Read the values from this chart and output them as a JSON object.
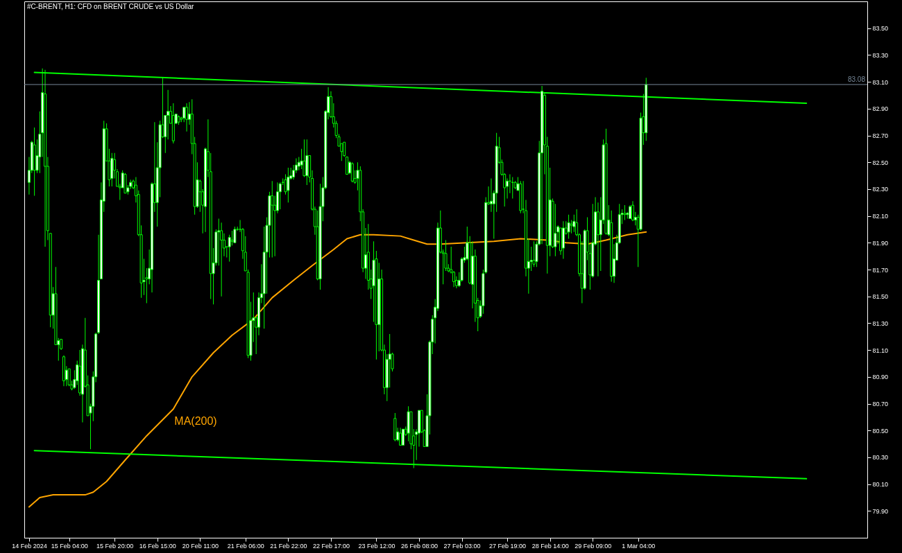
{
  "chart_data": {
    "type": "candlestick",
    "title": "#C-BRENT, H1:  CFD on BRENT CRUDE vs US Dollar",
    "color": "#00ff00",
    "categories": [
      "14 Feb 2024",
      null,
      null,
      null,
      null,
      null,
      null,
      null,
      null,
      null,
      null,
      null,
      null,
      null,
      null,
      "15 Feb 04:00",
      null,
      null,
      null,
      null,
      null,
      null,
      null,
      null,
      null,
      null,
      null,
      null,
      null,
      null,
      null,
      null,
      "15 Feb 20:00",
      null,
      null,
      null,
      null,
      null,
      null,
      null,
      null,
      null,
      null,
      null,
      null,
      null,
      null,
      null,
      "16 Feb 15:00",
      null,
      null,
      null,
      null,
      null,
      null,
      null,
      null,
      null,
      null,
      null,
      null,
      null,
      null,
      null,
      "20 Feb 11:00",
      null,
      null,
      null,
      null,
      null,
      null,
      null,
      null,
      null,
      null,
      null,
      null,
      null,
      null,
      null,
      null,
      "21 Feb 06:00",
      null,
      null,
      null,
      null,
      null,
      null,
      null,
      null,
      null,
      null,
      null,
      null,
      null,
      null,
      null,
      "21 Feb 22:00",
      null,
      null,
      null,
      null,
      null,
      null,
      null,
      null,
      null,
      null,
      null,
      null,
      null,
      null,
      null,
      "22 Feb 17:00",
      null,
      null,
      null,
      null,
      null,
      null,
      null,
      null,
      null,
      null,
      null,
      null,
      null,
      null,
      null,
      null,
      "23 Feb 12:00",
      null,
      null,
      null,
      null,
      null,
      null,
      null,
      null,
      null,
      null,
      null,
      null,
      null,
      null,
      null,
      "26 Feb 08:00",
      null,
      null,
      null,
      null,
      null,
      null,
      null,
      null,
      null,
      null,
      null,
      null,
      null,
      null,
      null,
      "27 Feb 03:00",
      null,
      null,
      null,
      null,
      null,
      null,
      null,
      null,
      null,
      null,
      null,
      null,
      null,
      null,
      null,
      null,
      "27 Feb 19:00",
      null,
      null,
      null,
      null,
      null,
      null,
      null,
      null,
      null,
      null,
      null,
      null,
      null,
      null,
      null,
      "28 Feb 14:00",
      null,
      null,
      null,
      null,
      null,
      null,
      null,
      null,
      null,
      null,
      null,
      null,
      null,
      null,
      null,
      "29 Feb 09:00",
      null,
      null,
      null,
      null,
      null,
      null,
      null,
      null,
      null,
      null,
      null,
      null,
      null,
      null,
      null,
      null,
      "1 Mar 04:00",
      null,
      null,
      null,
      null,
      null,
      null,
      null,
      null,
      null,
      null,
      null,
      null,
      null,
      null,
      null,
      null,
      null,
      null,
      null,
      null,
      null,
      null,
      null,
      null,
      null,
      null,
      null,
      null,
      null,
      null,
      null,
      null,
      null,
      null,
      null,
      null,
      null,
      null,
      null,
      null,
      null,
      null,
      null,
      null,
      null,
      null,
      null,
      null,
      null,
      null,
      null,
      null,
      null,
      null,
      null,
      null,
      null,
      null,
      null,
      null,
      null,
      null,
      null,
      null,
      null,
      null,
      null,
      null,
      null,
      null,
      null,
      null,
      null,
      null,
      null,
      null,
      null,
      null,
      null,
      null,
      null,
      null,
      null,
      null
    ],
    "ohlc": [
      [
        82.35,
        82.54,
        82.26,
        82.44
      ],
      [
        82.44,
        82.66,
        82.42,
        82.65
      ],
      [
        82.63,
        82.76,
        82.25,
        82.44
      ],
      [
        82.44,
        82.67,
        82.42,
        82.55
      ],
      [
        82.54,
        82.88,
        82.42,
        82.71
      ],
      [
        82.72,
        83.2,
        82.54,
        83.02
      ],
      [
        83.01,
        83.19,
        81.87,
        82.47
      ],
      [
        82.47,
        82.54,
        81.92,
        81.99
      ],
      [
        81.97,
        81.97,
        81.27,
        81.36
      ],
      [
        81.36,
        81.57,
        81.26,
        81.52
      ],
      [
        81.52,
        81.72,
        81.14,
        81.14
      ],
      [
        81.14,
        81.19,
        81.02,
        81.17
      ],
      [
        81.18,
        81.18,
        81.1,
        81.11
      ],
      [
        81.05,
        81.06,
        80.83,
        80.87
      ],
      [
        80.88,
        80.98,
        80.83,
        80.95
      ],
      [
        80.96,
        80.96,
        80.83,
        80.84
      ],
      [
        80.84,
        80.87,
        80.8,
        80.81
      ],
      [
        80.82,
        80.95,
        80.81,
        80.88
      ],
      [
        80.87,
        81.02,
        80.84,
        80.99
      ],
      [
        80.98,
        81.1,
        80.76,
        80.78
      ],
      [
        80.77,
        81.14,
        80.56,
        81.11
      ],
      [
        81.1,
        81.34,
        80.82,
        80.83
      ],
      [
        80.84,
        80.91,
        80.61,
        80.61
      ],
      [
        80.63,
        80.7,
        80.36,
        80.68
      ],
      [
        80.68,
        80.94,
        80.57,
        80.9
      ],
      [
        80.9,
        81.23,
        80.86,
        81.22
      ],
      [
        81.23,
        81.96,
        81.22,
        81.62
      ],
      [
        81.63,
        82.35,
        81.63,
        82.22
      ],
      [
        82.21,
        82.81,
        82.13,
        82.75
      ],
      [
        82.75,
        82.79,
        82.51,
        82.51
      ],
      [
        82.51,
        82.6,
        82.32,
        82.37
      ],
      [
        82.38,
        82.57,
        82.32,
        82.53
      ],
      [
        82.52,
        82.57,
        82.38,
        82.44
      ],
      [
        82.43,
        82.45,
        82.32,
        82.32
      ],
      [
        82.32,
        82.34,
        82.22,
        82.31
      ],
      [
        82.31,
        82.44,
        82.31,
        82.42
      ],
      [
        82.41,
        82.42,
        82.27,
        82.27
      ],
      [
        82.28,
        82.33,
        82.26,
        82.31
      ],
      [
        82.32,
        82.37,
        82.3,
        82.35
      ],
      [
        82.36,
        82.37,
        82.3,
        82.31
      ],
      [
        82.33,
        82.39,
        82.2,
        82.25
      ],
      [
        82.26,
        82.29,
        81.95,
        81.96
      ],
      [
        81.96,
        82.03,
        81.49,
        81.6
      ],
      [
        81.61,
        81.78,
        81.51,
        81.62
      ],
      [
        81.64,
        81.71,
        81.45,
        81.63
      ],
      [
        81.63,
        81.85,
        81.59,
        81.71
      ],
      [
        81.7,
        82.35,
        81.53,
        82.34
      ],
      [
        82.34,
        82.8,
        82.13,
        82.2
      ],
      [
        82.2,
        82.65,
        82.02,
        82.46
      ],
      [
        82.46,
        82.81,
        82.24,
        82.78
      ],
      [
        82.78,
        83.13,
        82.68,
        82.69
      ],
      [
        82.69,
        82.85,
        82.57,
        82.85
      ],
      [
        82.85,
        83.04,
        82.67,
        82.88
      ],
      [
        82.88,
        82.92,
        82.79,
        82.79
      ],
      [
        82.85,
        82.94,
        82.64,
        82.66
      ],
      [
        82.79,
        82.86,
        82.79,
        82.86
      ],
      [
        82.84,
        82.85,
        82.78,
        82.8
      ],
      [
        82.83,
        82.84,
        82.8,
        82.82
      ],
      [
        82.83,
        82.91,
        82.8,
        82.91
      ],
      [
        82.91,
        82.94,
        82.73,
        82.82
      ],
      [
        82.82,
        82.95,
        82.78,
        82.86
      ],
      [
        82.86,
        82.97,
        82.56,
        82.64
      ],
      [
        82.64,
        82.69,
        82.11,
        82.17
      ],
      [
        82.17,
        82.5,
        82.16,
        82.37
      ],
      [
        82.36,
        82.37,
        82.13,
        82.28
      ],
      [
        82.28,
        82.3,
        81.97,
        82.18
      ],
      [
        82.17,
        82.61,
        81.98,
        82.6
      ],
      [
        82.58,
        82.82,
        82.39,
        82.44
      ],
      [
        82.43,
        82.57,
        81.48,
        81.67
      ],
      [
        81.67,
        81.86,
        81.44,
        81.75
      ],
      [
        81.75,
        82.0,
        81.73,
        81.98
      ],
      [
        81.98,
        82.08,
        81.73,
        81.99
      ],
      [
        81.99,
        82.05,
        81.5,
        81.92
      ],
      [
        81.92,
        81.97,
        81.8,
        81.86
      ],
      [
        81.87,
        81.87,
        81.79,
        81.87
      ],
      [
        81.87,
        81.96,
        81.76,
        81.94
      ],
      [
        81.92,
        81.99,
        81.88,
        81.91
      ],
      [
        81.9,
        82.02,
        81.9,
        82.0
      ],
      [
        82.0,
        82.02,
        81.99,
        82.0
      ],
      [
        82.0,
        82.07,
        81.98,
        82.0
      ],
      [
        82.0,
        82.01,
        81.78,
        81.84
      ],
      [
        81.83,
        81.95,
        81.69,
        81.69
      ],
      [
        81.68,
        81.7,
        81.04,
        81.06
      ],
      [
        81.06,
        81.46,
        81.02,
        81.32
      ],
      [
        81.32,
        81.53,
        81.16,
        81.34
      ],
      [
        81.34,
        81.35,
        81.07,
        81.27
      ],
      [
        81.27,
        81.53,
        81.21,
        81.49
      ],
      [
        81.49,
        81.74,
        81.45,
        81.52
      ],
      [
        81.52,
        82.02,
        81.26,
        81.83
      ],
      [
        81.83,
        82.09,
        81.52,
        82.03
      ],
      [
        82.03,
        82.28,
        81.79,
        82.25
      ],
      [
        82.25,
        82.36,
        81.79,
        82.18
      ],
      [
        82.18,
        82.25,
        81.8,
        82.14
      ],
      [
        82.14,
        82.35,
        82.12,
        82.28
      ],
      [
        82.28,
        82.35,
        82.15,
        82.34
      ],
      [
        82.35,
        82.38,
        82.33,
        82.35
      ],
      [
        82.37,
        82.41,
        82.26,
        82.28
      ],
      [
        82.29,
        82.46,
        82.2,
        82.39
      ],
      [
        82.38,
        82.46,
        82.37,
        82.4
      ],
      [
        82.39,
        82.48,
        82.37,
        82.44
      ],
      [
        82.44,
        82.53,
        82.42,
        82.48
      ],
      [
        82.47,
        82.54,
        82.44,
        82.5
      ],
      [
        82.48,
        82.6,
        82.45,
        82.51
      ],
      [
        82.51,
        82.67,
        82.39,
        82.4
      ],
      [
        82.4,
        82.67,
        82.33,
        82.55
      ],
      [
        82.55,
        82.55,
        82.35,
        82.39
      ],
      [
        82.38,
        82.44,
        82.14,
        82.15
      ],
      [
        82.15,
        82.17,
        81.96,
        82.02
      ],
      [
        82.02,
        82.14,
        81.62,
        81.63
      ],
      [
        81.63,
        82.34,
        81.55,
        82.17
      ],
      [
        82.17,
        82.39,
        82.06,
        82.31
      ],
      [
        82.31,
        82.89,
        82.3,
        82.88
      ],
      [
        82.87,
        83.06,
        82.82,
        82.99
      ],
      [
        82.99,
        83.03,
        82.83,
        82.84
      ],
      [
        82.84,
        82.94,
        82.76,
        82.79
      ],
      [
        82.79,
        82.81,
        82.68,
        82.7
      ],
      [
        82.69,
        82.71,
        82.62,
        82.62
      ],
      [
        82.64,
        82.64,
        82.51,
        82.58
      ],
      [
        82.65,
        82.65,
        82.54,
        82.55
      ],
      [
        82.54,
        82.54,
        82.41,
        82.41
      ],
      [
        82.42,
        82.51,
        82.41,
        82.5
      ],
      [
        82.49,
        82.5,
        82.35,
        82.36
      ],
      [
        82.38,
        82.44,
        82.34,
        82.35
      ],
      [
        82.38,
        82.5,
        82.29,
        82.44
      ],
      [
        82.44,
        82.47,
        82.06,
        82.13
      ],
      [
        82.13,
        82.15,
        81.68,
        81.71
      ],
      [
        81.71,
        82.01,
        81.63,
        81.81
      ],
      [
        81.83,
        82.04,
        81.55,
        81.62
      ],
      [
        81.63,
        81.7,
        81.48,
        81.56
      ],
      [
        81.58,
        81.91,
        81.31,
        81.77
      ],
      [
        81.78,
        81.84,
        81.03,
        81.29
      ],
      [
        81.29,
        81.75,
        81.09,
        81.63
      ],
      [
        81.63,
        81.7,
        81.09,
        81.1
      ],
      [
        81.1,
        81.14,
        80.77,
        80.82
      ],
      [
        80.82,
        81.07,
        80.72,
        81.03
      ],
      [
        81.03,
        81.22,
        80.82,
        81.07
      ],
      [
        81.07,
        81.08,
        80.94,
        80.96
      ],
      [
        80.59,
        80.63,
        80.42,
        80.43
      ],
      [
        80.43,
        80.52,
        80.42,
        80.49
      ],
      [
        80.48,
        80.52,
        80.39,
        80.39
      ],
      [
        80.39,
        80.51,
        80.39,
        80.51
      ],
      [
        80.51,
        80.53,
        80.46,
        80.47
      ],
      [
        80.48,
        80.68,
        80.42,
        80.64
      ],
      [
        80.64,
        80.64,
        80.36,
        80.4
      ],
      [
        80.46,
        80.51,
        80.22,
        80.39
      ],
      [
        80.47,
        80.51,
        80.28,
        80.49
      ],
      [
        80.48,
        80.65,
        80.38,
        80.65
      ],
      [
        80.65,
        80.65,
        80.48,
        80.49
      ],
      [
        80.5,
        80.51,
        80.38,
        80.38
      ],
      [
        80.38,
        80.77,
        80.38,
        80.61
      ],
      [
        80.61,
        81.17,
        80.47,
        81.16
      ],
      [
        81.16,
        81.36,
        81.07,
        81.33
      ],
      [
        81.34,
        81.48,
        81.15,
        81.42
      ],
      [
        81.41,
        82.05,
        81.39,
        82.01
      ],
      [
        82.01,
        82.14,
        81.82,
        81.83
      ],
      [
        81.83,
        81.85,
        81.59,
        81.82
      ],
      [
        81.82,
        81.92,
        81.69,
        81.71
      ],
      [
        81.71,
        81.74,
        81.68,
        81.69
      ],
      [
        81.7,
        81.87,
        81.67,
        81.68
      ],
      [
        81.68,
        81.69,
        81.57,
        81.61
      ],
      [
        81.62,
        81.65,
        81.56,
        81.58
      ],
      [
        81.58,
        81.68,
        81.57,
        81.62
      ],
      [
        81.62,
        81.79,
        81.61,
        81.78
      ],
      [
        81.77,
        81.87,
        81.75,
        81.79
      ],
      [
        81.78,
        82.02,
        81.77,
        81.9
      ],
      [
        81.9,
        81.95,
        81.59,
        81.6
      ],
      [
        81.59,
        81.91,
        81.41,
        81.8
      ],
      [
        81.8,
        81.85,
        81.31,
        81.45
      ],
      [
        81.47,
        81.49,
        81.24,
        81.34
      ],
      [
        81.35,
        81.47,
        81.34,
        81.43
      ],
      [
        81.43,
        81.7,
        81.37,
        81.67
      ],
      [
        81.68,
        82.24,
        81.67,
        82.2
      ],
      [
        82.2,
        82.32,
        82.18,
        82.19
      ],
      [
        82.19,
        82.38,
        82.13,
        82.21
      ],
      [
        82.19,
        82.29,
        81.93,
        82.27
      ],
      [
        82.27,
        82.72,
        82.13,
        82.62
      ],
      [
        82.61,
        82.69,
        82.49,
        82.5
      ],
      [
        82.5,
        82.52,
        82.4,
        82.41
      ],
      [
        82.41,
        82.42,
        82.17,
        82.31
      ],
      [
        82.32,
        82.38,
        82.23,
        82.36
      ],
      [
        82.36,
        82.41,
        82.27,
        82.36
      ],
      [
        82.35,
        82.39,
        82.23,
        82.35
      ],
      [
        82.35,
        82.36,
        82.3,
        82.31
      ],
      [
        82.29,
        82.39,
        82.29,
        82.34
      ],
      [
        82.34,
        82.36,
        82.12,
        82.14
      ],
      [
        82.15,
        82.36,
        82.12,
        82.15
      ],
      [
        82.14,
        82.22,
        81.65,
        81.71
      ],
      [
        81.71,
        81.93,
        81.52,
        81.76
      ],
      [
        81.76,
        81.87,
        81.69,
        81.77
      ],
      [
        81.77,
        81.91,
        81.72,
        81.74
      ],
      [
        81.76,
        81.91,
        81.72,
        81.89
      ],
      [
        81.89,
        82.66,
        81.88,
        82.57
      ],
      [
        82.57,
        83.07,
        81.89,
        83.03
      ],
      [
        83.0,
        83.02,
        82.41,
        82.63
      ],
      [
        82.62,
        82.69,
        81.67,
        81.88
      ],
      [
        81.88,
        82.46,
        81.8,
        82.22
      ],
      [
        82.21,
        82.23,
        81.86,
        81.87
      ],
      [
        81.87,
        82.19,
        81.8,
        81.97
      ],
      [
        81.98,
        82.03,
        81.89,
        82.02
      ],
      [
        82.01,
        82.01,
        81.81,
        81.84
      ],
      [
        81.86,
        82.06,
        81.78,
        82.01
      ],
      [
        82.01,
        82.06,
        81.96,
        81.97
      ],
      [
        81.98,
        82.11,
        81.93,
        82.05
      ],
      [
        82.04,
        82.07,
        81.97,
        82.03
      ],
      [
        82.02,
        82.11,
        81.98,
        82.06
      ],
      [
        82.05,
        82.15,
        81.95,
        81.96
      ],
      [
        81.96,
        81.97,
        81.65,
        81.67
      ],
      [
        81.67,
        81.91,
        81.45,
        81.56
      ],
      [
        81.56,
        82.0,
        81.55,
        81.99
      ],
      [
        81.99,
        82.09,
        81.77,
        81.83
      ],
      [
        81.82,
        81.89,
        81.55,
        81.66
      ],
      [
        81.65,
        82.19,
        81.64,
        81.9
      ],
      [
        81.89,
        82.24,
        81.88,
        82.13
      ],
      [
        82.13,
        82.2,
        81.65,
        81.96
      ],
      [
        81.96,
        82.24,
        81.69,
        82.07
      ],
      [
        82.07,
        82.67,
        82.04,
        82.63
      ],
      [
        82.64,
        82.75,
        81.96,
        81.97
      ],
      [
        81.96,
        82.18,
        81.95,
        82.07
      ],
      [
        82.05,
        82.14,
        81.61,
        81.65
      ],
      [
        81.65,
        81.89,
        81.6,
        81.78
      ],
      [
        81.77,
        81.96,
        81.77,
        81.9
      ],
      [
        81.9,
        82.19,
        81.89,
        82.11
      ],
      [
        82.11,
        82.15,
        82.04,
        82.12
      ],
      [
        82.12,
        82.18,
        82.07,
        82.11
      ],
      [
        82.11,
        82.13,
        82.08,
        82.12
      ],
      [
        82.08,
        82.18,
        82.08,
        82.17
      ],
      [
        82.18,
        82.21,
        82.06,
        82.07
      ],
      [
        82.07,
        82.13,
        82.03,
        82.09
      ],
      [
        82.09,
        82.11,
        81.72,
        82.0
      ],
      [
        82.0,
        82.87,
        81.99,
        82.83
      ],
      [
        82.84,
        83.01,
        82.63,
        82.72
      ],
      [
        82.72,
        83.13,
        82.66,
        83.08
      ],
      null,
      null,
      null,
      null,
      null,
      null,
      null,
      null,
      null,
      null,
      null,
      null,
      null,
      null,
      null,
      null,
      null,
      null,
      null,
      null,
      null,
      null,
      null,
      null,
      null,
      null,
      null,
      null,
      null,
      null,
      null,
      null,
      null,
      null,
      null,
      null,
      null,
      null,
      null,
      null,
      null,
      null,
      null,
      null,
      null,
      null,
      null,
      null,
      null,
      null,
      null,
      null,
      null,
      null,
      null,
      null,
      null,
      null,
      null,
      null,
      null,
      null,
      null,
      null,
      null,
      null,
      null,
      null,
      null,
      null,
      null,
      null,
      null,
      null,
      null,
      null,
      null,
      null,
      null,
      null,
      null
    ],
    "series": [
      {
        "type": "line",
        "color": "#ffa500",
        "values": [
          79.93,
          null,
          null,
          null,
          80.0,
          null,
          null,
          null,
          null,
          80.02,
          null,
          null,
          null,
          null,
          80.02,
          null,
          null,
          null,
          null,
          null,
          null,
          80.02,
          null,
          null,
          80.04,
          null,
          null,
          null,
          null,
          80.12,
          null,
          null,
          null,
          null,
          null,
          null,
          80.28,
          null,
          null,
          null,
          null,
          null,
          null,
          null,
          80.46,
          null,
          null,
          null,
          null,
          null,
          null,
          null,
          null,
          null,
          80.66,
          null,
          null,
          null,
          null,
          null,
          null,
          80.9,
          null,
          null,
          null,
          null,
          null,
          null,
          null,
          81.08,
          null,
          null,
          null,
          null,
          null,
          null,
          81.21,
          null,
          null,
          null,
          null,
          null,
          null,
          null,
          81.33,
          null,
          null,
          null,
          null,
          null,
          null,
          81.49,
          null,
          null,
          null,
          null,
          null,
          null,
          null,
          81.62,
          null,
          null,
          null,
          null,
          null,
          null,
          81.73,
          null,
          null,
          null,
          null,
          null,
          null,
          null,
          81.85,
          null,
          null,
          null,
          null,
          81.93,
          null,
          null,
          null,
          null,
          81.96,
          null,
          null,
          null,
          null,
          81.96,
          null,
          null,
          null,
          null,
          null,
          null,
          null,
          null,
          null,
          81.95,
          null,
          null,
          null,
          null,
          81.92,
          null,
          null,
          null,
          null,
          81.89,
          null,
          null,
          null,
          null,
          81.89,
          null,
          null,
          null,
          null,
          null,
          null,
          null,
          null,
          null,
          81.9,
          null,
          null,
          null,
          null,
          null,
          null,
          null,
          null,
          null,
          81.91,
          null,
          null,
          null,
          null,
          null,
          null,
          null,
          null,
          null,
          81.93,
          null,
          null,
          null,
          null,
          null,
          null,
          null,
          null,
          null,
          81.92,
          null,
          null,
          null,
          null,
          null,
          null,
          81.9,
          null,
          null,
          null,
          null,
          null,
          null,
          null,
          81.89,
          null,
          null,
          null,
          null,
          null,
          null,
          81.92,
          null,
          null,
          null,
          null,
          null,
          null,
          null,
          81.96,
          null,
          null,
          null,
          null,
          null,
          null,
          81.98,
          null,
          null,
          null,
          null,
          null,
          null,
          null,
          null,
          null,
          null,
          null,
          null,
          null,
          null,
          null,
          null,
          null,
          null,
          null,
          null,
          null,
          null,
          null,
          null,
          null,
          null,
          null,
          null,
          null,
          null,
          null,
          null,
          null,
          null,
          null,
          null,
          null,
          null,
          null,
          null,
          null,
          null,
          null,
          null,
          null,
          null,
          null,
          null,
          null,
          null,
          null,
          null,
          null,
          null,
          null,
          null,
          null,
          null,
          null,
          null,
          null,
          null,
          null,
          null,
          null,
          null,
          null,
          null,
          null,
          null,
          null,
          null,
          null,
          null,
          null,
          null,
          null,
          null,
          null,
          null,
          null
        ]
      },
      {
        "type": "line",
        "color": "#00ff00",
        "values": [
          null,
          null,
          83.17,
          null,
          null,
          null,
          null,
          null,
          null,
          null,
          null,
          null,
          null,
          null,
          null,
          null,
          null,
          null,
          null,
          null,
          null,
          null,
          null,
          null,
          null,
          null,
          null,
          null,
          null,
          null,
          null,
          null,
          null,
          null,
          null,
          null,
          null,
          null,
          null,
          null,
          null,
          null,
          null,
          null,
          null,
          null,
          null,
          null,
          null,
          null,
          null,
          null,
          null,
          null,
          null,
          null,
          null,
          null,
          null,
          null,
          null,
          null,
          null,
          null,
          null,
          null,
          null,
          null,
          null,
          null,
          null,
          null,
          null,
          null,
          null,
          null,
          null,
          null,
          null,
          null,
          null,
          null,
          null,
          null,
          null,
          null,
          null,
          null,
          null,
          null,
          null,
          null,
          null,
          null,
          null,
          null,
          null,
          null,
          null,
          null,
          null,
          null,
          null,
          null,
          null,
          null,
          null,
          null,
          null,
          null,
          null,
          null,
          null,
          null,
          null,
          null,
          null,
          null,
          null,
          null,
          null,
          null,
          null,
          null,
          null,
          null,
          null,
          null,
          null,
          null,
          null,
          null,
          null,
          null,
          null,
          null,
          null,
          null,
          null,
          null,
          null,
          null,
          null,
          null,
          null,
          null,
          null,
          null,
          null,
          null,
          null,
          null,
          null,
          null,
          null,
          null,
          null,
          null,
          null,
          null,
          null,
          null,
          null,
          null,
          null,
          null,
          null,
          null,
          null,
          null,
          null,
          null,
          null,
          null,
          null,
          null,
          null,
          null,
          null,
          null,
          null,
          null,
          null,
          null,
          null,
          null,
          null,
          null,
          null,
          null,
          null,
          null,
          null,
          null,
          null,
          null,
          null,
          null,
          null,
          null,
          null,
          null,
          null,
          null,
          null,
          null,
          null,
          null,
          null,
          null,
          null,
          null,
          null,
          null,
          null,
          null,
          null,
          null,
          null,
          null,
          null,
          null,
          null,
          null,
          null,
          null,
          null,
          null,
          null,
          null,
          null,
          null,
          null,
          null,
          null,
          null,
          null,
          null,
          null,
          null,
          null,
          null,
          null,
          null,
          null,
          null,
          null,
          null,
          null,
          null,
          null,
          null,
          null,
          null,
          null,
          null,
          null,
          null,
          null,
          null,
          null,
          null,
          null,
          null,
          null,
          null,
          null,
          null,
          null,
          null,
          null,
          null,
          null,
          null,
          null,
          null,
          null,
          null,
          null,
          null,
          null,
          null,
          null,
          null,
          null,
          null,
          null,
          null,
          null,
          null,
          null,
          82.94,
          null,
          null,
          null,
          null,
          null,
          null,
          null,
          null,
          null,
          null,
          null,
          null,
          null,
          null,
          null,
          null,
          null,
          null,
          null,
          null,
          null
        ]
      },
      {
        "type": "line",
        "color": "#00ff00",
        "values": [
          null,
          null,
          80.35,
          null,
          null,
          null,
          null,
          null,
          null,
          null,
          null,
          null,
          null,
          null,
          null,
          null,
          null,
          null,
          null,
          null,
          null,
          null,
          null,
          null,
          null,
          null,
          null,
          null,
          null,
          null,
          null,
          null,
          null,
          null,
          null,
          null,
          null,
          null,
          null,
          null,
          null,
          null,
          null,
          null,
          null,
          null,
          null,
          null,
          null,
          null,
          null,
          null,
          null,
          null,
          null,
          null,
          null,
          null,
          null,
          null,
          null,
          null,
          null,
          null,
          null,
          null,
          null,
          null,
          null,
          null,
          null,
          null,
          null,
          null,
          null,
          null,
          null,
          null,
          null,
          null,
          null,
          null,
          null,
          null,
          null,
          null,
          null,
          null,
          null,
          null,
          null,
          null,
          null,
          null,
          null,
          null,
          null,
          null,
          null,
          null,
          null,
          null,
          null,
          null,
          null,
          null,
          null,
          null,
          null,
          null,
          null,
          null,
          null,
          null,
          null,
          null,
          null,
          null,
          null,
          null,
          null,
          null,
          null,
          null,
          null,
          null,
          null,
          null,
          null,
          null,
          null,
          null,
          null,
          null,
          null,
          null,
          null,
          null,
          null,
          null,
          null,
          null,
          null,
          null,
          null,
          null,
          null,
          null,
          null,
          null,
          null,
          null,
          null,
          null,
          null,
          null,
          null,
          null,
          null,
          null,
          null,
          null,
          null,
          null,
          null,
          null,
          null,
          null,
          null,
          null,
          null,
          null,
          null,
          null,
          null,
          null,
          null,
          null,
          null,
          null,
          null,
          null,
          null,
          null,
          null,
          null,
          null,
          null,
          null,
          null,
          null,
          null,
          null,
          null,
          null,
          null,
          null,
          null,
          null,
          null,
          null,
          null,
          null,
          null,
          null,
          null,
          null,
          null,
          null,
          null,
          null,
          null,
          null,
          null,
          null,
          null,
          null,
          null,
          null,
          null,
          null,
          null,
          null,
          null,
          null,
          null,
          null,
          null,
          null,
          null,
          null,
          null,
          null,
          null,
          null,
          null,
          null,
          null,
          null,
          null,
          null,
          null,
          null,
          null,
          null,
          null,
          null,
          null,
          null,
          null,
          null,
          null,
          null,
          null,
          null,
          null,
          null,
          null,
          null,
          null,
          null,
          null,
          null,
          null,
          null,
          null,
          null,
          null,
          null,
          null,
          null,
          null,
          null,
          null,
          null,
          null,
          null,
          null,
          null,
          null,
          null,
          null,
          null,
          null,
          null,
          null,
          null,
          null,
          null,
          null,
          null,
          80.14,
          null,
          null,
          null,
          null,
          null,
          null,
          null,
          null,
          null,
          null,
          null,
          null,
          null,
          null,
          null,
          null,
          null,
          null,
          null,
          null,
          null
        ]
      }
    ],
    "annotations": [
      "MA(200)"
    ],
    "ref_lines": [
      {
        "axis": "y",
        "value": 83.08,
        "label": "83.08",
        "color": "#778899"
      }
    ],
    "ylim": [
      79.7,
      83.7
    ],
    "yticks": [
      {
        "value": 79.9,
        "label": "79.90"
      },
      {
        "value": 80.1,
        "label": "80.10"
      },
      {
        "value": 80.3,
        "label": "80.30"
      },
      {
        "value": 80.5,
        "label": "80.50"
      },
      {
        "value": 80.7,
        "label": "80.70"
      },
      {
        "value": 80.9,
        "label": "80.90"
      },
      {
        "value": 81.1,
        "label": "81.10"
      },
      {
        "value": 81.3,
        "label": "81.30"
      },
      {
        "value": 81.5,
        "label": "81.50"
      },
      {
        "value": 81.7,
        "label": "81.70"
      },
      {
        "value": 81.9,
        "label": "81.90"
      },
      {
        "value": 82.1,
        "label": "82.10"
      },
      {
        "value": 82.3,
        "label": "82.30"
      },
      {
        "value": 82.5,
        "label": "82.50"
      },
      {
        "value": 82.7,
        "label": "82.70"
      },
      {
        "value": 82.9,
        "label": "82.90"
      },
      {
        "value": 83.1,
        "label": "83.10"
      },
      {
        "value": 83.3,
        "label": "83.30"
      },
      {
        "value": 83.5,
        "label": "83.50"
      }
    ],
    "grid": false
  }
}
